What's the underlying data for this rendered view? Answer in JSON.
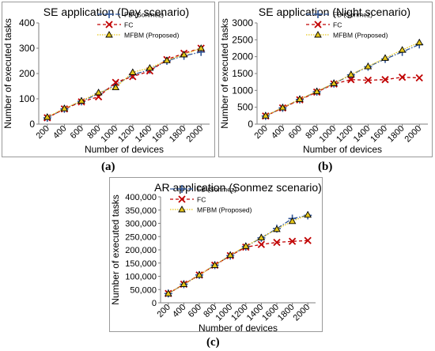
{
  "chart_data": [
    {
      "type": "line",
      "title": "SE application (Day scenario)",
      "xlabel": "Number of devices",
      "ylabel": "Number of executed tasks",
      "x": [
        200,
        400,
        600,
        800,
        1000,
        1200,
        1400,
        1600,
        1800,
        2000
      ],
      "x_tick_labels": [
        "200",
        "400",
        "600",
        "800",
        "1000",
        "1200",
        "1400",
        "1600",
        "1800",
        "2000"
      ],
      "ylim": [
        0,
        400
      ],
      "y_ticks": [
        0,
        100,
        200,
        300,
        400
      ],
      "y_tick_labels": [
        "0",
        "100",
        "200",
        "300",
        "400"
      ],
      "grid": false,
      "legend_position": "top-right",
      "series": [
        {
          "name": "FB (Sonmez)",
          "values": [
            25,
            60,
            90,
            120,
            155,
            195,
            215,
            250,
            270,
            285
          ],
          "color": "#2f5597",
          "marker": "plus",
          "style": "dashdot"
        },
        {
          "name": "FC",
          "values": [
            25,
            60,
            88,
            108,
            165,
            188,
            210,
            255,
            280,
            300
          ],
          "color": "#c00000",
          "marker": "x",
          "style": "dashed"
        },
        {
          "name": "MFBM (Proposed)",
          "values": [
            28,
            62,
            92,
            125,
            145,
            205,
            222,
            252,
            275,
            300
          ],
          "color": "#e6c619",
          "marker": "triangle",
          "style": "dotted"
        }
      ]
    },
    {
      "type": "line",
      "title": "SE application  (Night scenario)",
      "xlabel": "Number of devices",
      "ylabel": "Number of executed tasks",
      "x": [
        200,
        400,
        600,
        800,
        1000,
        1200,
        1400,
        1600,
        1800,
        2000
      ],
      "x_tick_labels": [
        "200",
        "400",
        "600",
        "800",
        "1000",
        "1200",
        "1400",
        "1600",
        "1800",
        "2000"
      ],
      "ylim": [
        0,
        3000
      ],
      "y_ticks": [
        0,
        500,
        1000,
        1500,
        2000,
        2500,
        3000
      ],
      "y_tick_labels": [
        "0",
        "500",
        "1000",
        "1500",
        "2000",
        "2500",
        "3000"
      ],
      "grid": false,
      "legend_position": "top-right",
      "series": [
        {
          "name": "FB (Sonmez)",
          "values": [
            240,
            480,
            730,
            960,
            1200,
            1460,
            1700,
            1930,
            2140,
            2360
          ],
          "color": "#2f5597",
          "marker": "plus",
          "style": "dashdot"
        },
        {
          "name": "FC",
          "values": [
            240,
            480,
            720,
            950,
            1190,
            1320,
            1300,
            1320,
            1390,
            1370
          ],
          "color": "#c00000",
          "marker": "x",
          "style": "dashed"
        },
        {
          "name": "MFBM (Proposed)",
          "values": [
            250,
            490,
            740,
            970,
            1210,
            1470,
            1710,
            1960,
            2200,
            2420
          ],
          "color": "#e6c619",
          "marker": "triangle",
          "style": "dotted"
        }
      ]
    },
    {
      "type": "line",
      "title": "AR application (Sonmez scenario)",
      "xlabel": "Number of devices",
      "ylabel": "Number of executed tasks",
      "x": [
        200,
        400,
        600,
        800,
        1000,
        1200,
        1400,
        1600,
        1800,
        2000
      ],
      "x_tick_labels": [
        "200",
        "400",
        "600",
        "800",
        "1000",
        "1200",
        "1400",
        "1600",
        "1800",
        "2000"
      ],
      "ylim": [
        0,
        400000
      ],
      "y_ticks": [
        0,
        50000,
        100000,
        150000,
        200000,
        250000,
        300000,
        350000,
        400000
      ],
      "y_tick_labels": [
        "0",
        "50,000",
        "100,000",
        "150,000",
        "200,000",
        "250,000",
        "300,000",
        "350,000",
        "400,000"
      ],
      "grid": false,
      "legend_position": "top-right",
      "series": [
        {
          "name": "FB (Sonmez)",
          "values": [
            35000,
            70000,
            105000,
            142000,
            178000,
            212000,
            245000,
            280000,
            318000,
            330000
          ],
          "color": "#2f5597",
          "marker": "plus",
          "style": "dashdot"
        },
        {
          "name": "FC",
          "values": [
            35000,
            70000,
            105000,
            142000,
            178000,
            210000,
            220000,
            228000,
            232000,
            235000
          ],
          "color": "#c00000",
          "marker": "x",
          "style": "dashed"
        },
        {
          "name": "MFBM (Proposed)",
          "values": [
            35000,
            70000,
            105000,
            142000,
            180000,
            214000,
            246000,
            278000,
            308000,
            332000
          ],
          "color": "#e6c619",
          "marker": "triangle",
          "style": "dotted"
        }
      ]
    }
  ],
  "figure_labels": {
    "a": "(a)",
    "b": "(b)",
    "c": "(c)"
  }
}
